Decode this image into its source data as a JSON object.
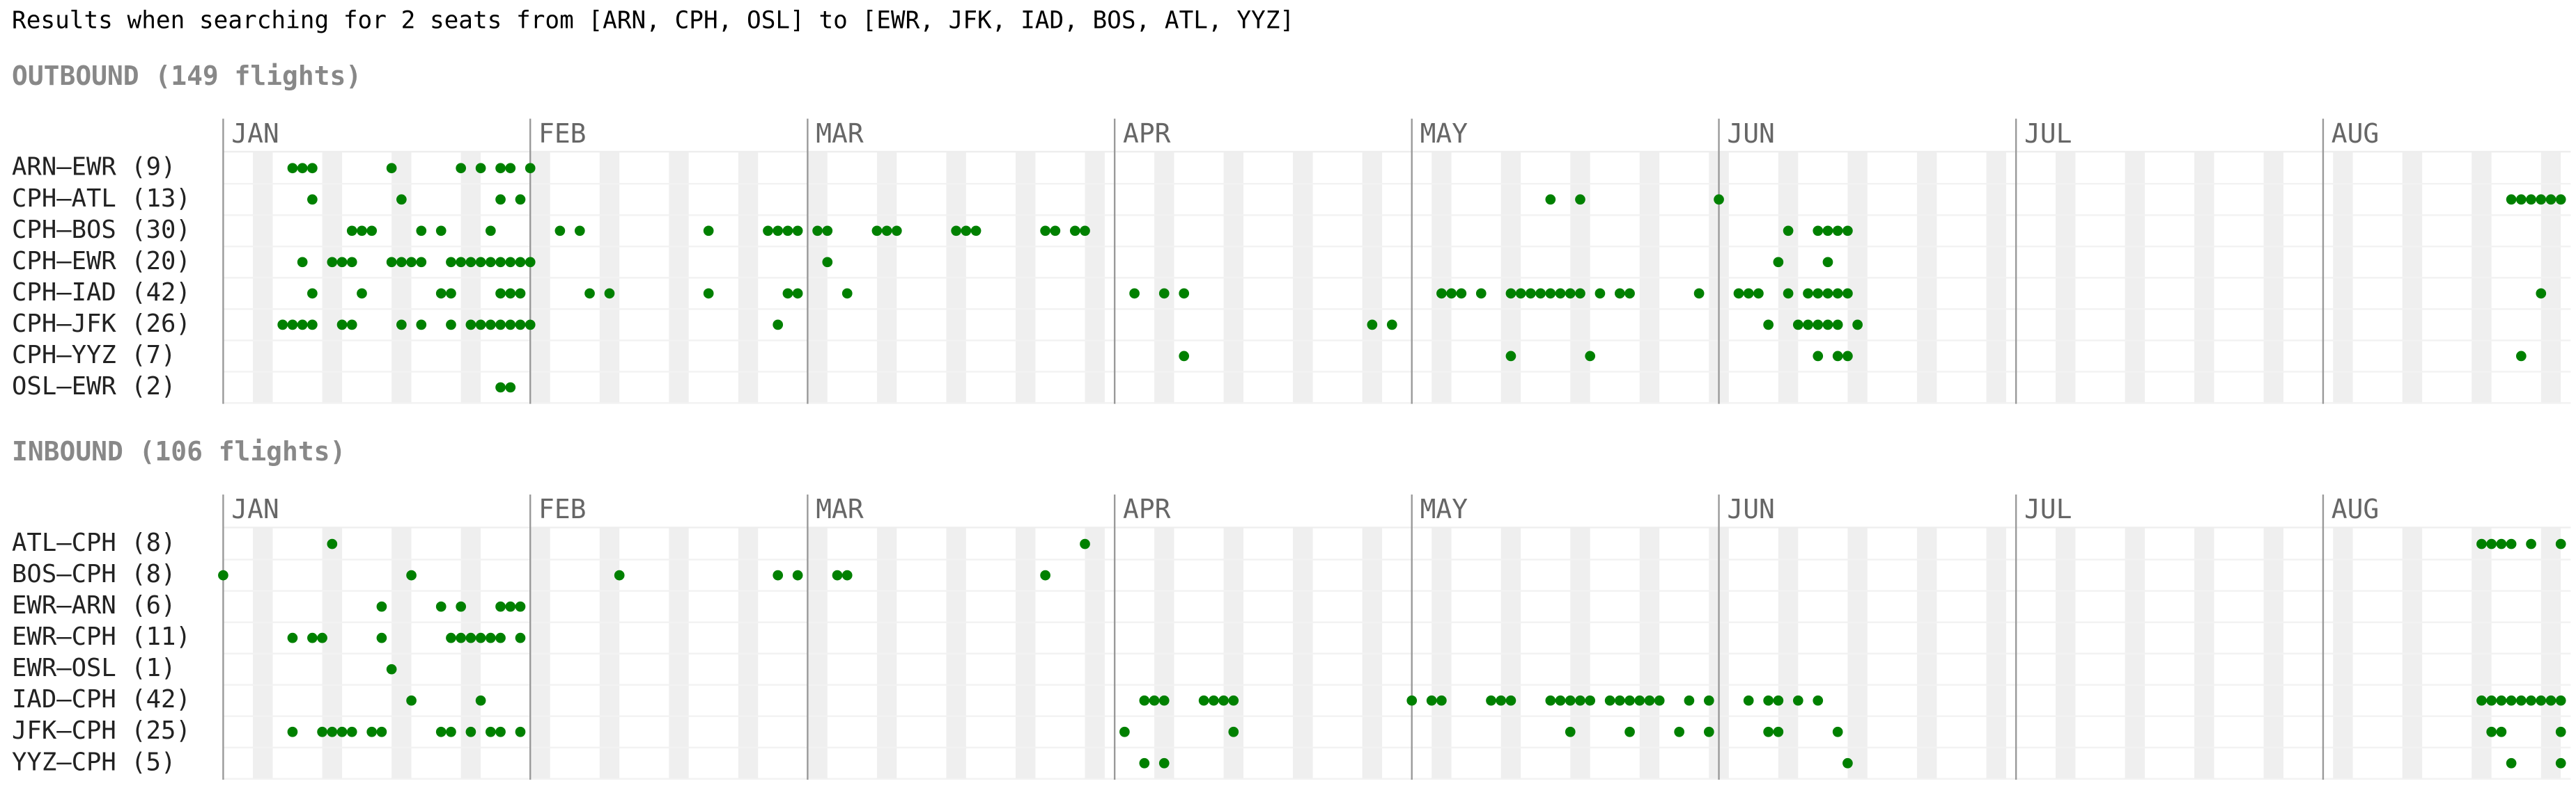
{
  "header": "Results when searching for 2 seats from [ARN, CPH, OSL] to [EWR, JFK, IAD, BOS, ATL, YYZ]",
  "months": [
    {
      "label": "JAN",
      "day": 0
    },
    {
      "label": "FEB",
      "day": 31
    },
    {
      "label": "MAR",
      "day": 59
    },
    {
      "label": "APR",
      "day": 90
    },
    {
      "label": "MAY",
      "day": 120
    },
    {
      "label": "JUN",
      "day": 151
    },
    {
      "label": "JUL",
      "day": 181
    },
    {
      "label": "AUG",
      "day": 212
    }
  ],
  "sections": [
    {
      "title": "OUTBOUND (149 flights)",
      "rows": [
        {
          "label": "ARN–EWR (9)",
          "days": [
            7,
            8,
            9,
            17,
            24,
            26,
            28,
            29,
            31
          ]
        },
        {
          "label": "CPH–ATL (13)",
          "days": [
            9,
            18,
            28,
            30,
            134,
            137,
            151,
            231,
            232,
            233,
            234,
            235,
            236
          ]
        },
        {
          "label": "CPH–BOS (30)",
          "days": [
            13,
            14,
            15,
            20,
            22,
            27,
            34,
            36,
            49,
            55,
            56,
            57,
            58,
            60,
            61,
            66,
            67,
            68,
            74,
            75,
            76,
            83,
            84,
            86,
            87,
            158,
            161,
            162,
            163,
            164
          ]
        },
        {
          "label": "CPH–EWR (20)",
          "days": [
            8,
            11,
            12,
            13,
            17,
            18,
            19,
            20,
            23,
            24,
            25,
            26,
            27,
            28,
            29,
            30,
            31,
            61,
            157,
            162
          ]
        },
        {
          "label": "CPH–IAD (42)",
          "days": [
            9,
            14,
            22,
            23,
            28,
            29,
            30,
            37,
            39,
            49,
            57,
            58,
            63,
            92,
            95,
            97,
            123,
            124,
            125,
            127,
            130,
            131,
            132,
            133,
            134,
            135,
            136,
            137,
            139,
            141,
            142,
            149,
            153,
            154,
            155,
            158,
            160,
            161,
            162,
            163,
            164,
            234
          ]
        },
        {
          "label": "CPH–JFK (26)",
          "days": [
            6,
            7,
            8,
            9,
            12,
            13,
            18,
            20,
            23,
            25,
            26,
            27,
            28,
            29,
            30,
            31,
            56,
            116,
            118,
            156,
            159,
            160,
            161,
            162,
            163,
            165
          ]
        },
        {
          "label": "CPH–YYZ (7)",
          "days": [
            97,
            130,
            138,
            161,
            163,
            164,
            232
          ]
        },
        {
          "label": "OSL–EWR (2)",
          "days": [
            28,
            29
          ]
        }
      ]
    },
    {
      "title": "INBOUND (106 flights)",
      "rows": [
        {
          "label": "ATL–CPH (8)",
          "days": [
            11,
            87,
            228,
            229,
            230,
            231,
            233,
            236
          ]
        },
        {
          "label": "BOS–CPH (8)",
          "days": [
            0,
            19,
            40,
            56,
            58,
            62,
            63,
            83
          ]
        },
        {
          "label": "EWR–ARN (6)",
          "days": [
            16,
            22,
            24,
            28,
            29,
            30
          ]
        },
        {
          "label": "EWR–CPH (11)",
          "days": [
            7,
            9,
            10,
            16,
            23,
            24,
            25,
            26,
            27,
            28,
            30
          ]
        },
        {
          "label": "EWR–OSL (1)",
          "days": [
            17
          ]
        },
        {
          "label": "IAD–CPH (42)",
          "days": [
            19,
            26,
            93,
            94,
            95,
            99,
            100,
            101,
            102,
            120,
            122,
            123,
            128,
            129,
            130,
            134,
            135,
            136,
            137,
            138,
            140,
            141,
            142,
            143,
            144,
            145,
            148,
            150,
            154,
            156,
            157,
            159,
            161,
            228,
            229,
            230,
            231,
            232,
            233,
            234,
            235,
            236
          ]
        },
        {
          "label": "JFK–CPH (25)",
          "days": [
            7,
            10,
            11,
            12,
            13,
            15,
            16,
            22,
            23,
            25,
            27,
            28,
            30,
            91,
            102,
            136,
            142,
            147,
            150,
            156,
            157,
            163,
            229,
            230,
            236
          ]
        },
        {
          "label": "YYZ–CPH (5)",
          "days": [
            93,
            95,
            164,
            231,
            236
          ]
        }
      ]
    }
  ]
}
